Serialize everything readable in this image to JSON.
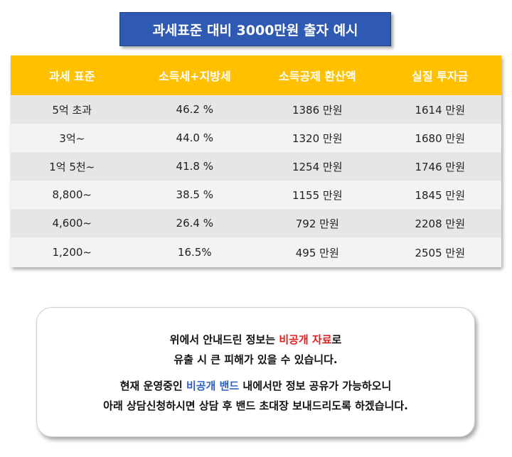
{
  "title": "과세표준 대비 3000만원 출자 예시",
  "table": {
    "headers": [
      "과세 표준",
      "소득세+지방세",
      "소득공제 환산액",
      "실질 투자금"
    ],
    "rows": [
      [
        "5억 초과",
        "46.2 %",
        "1386 만원",
        "1614 만원"
      ],
      [
        "3억~",
        "44.0 %",
        "1320 만원",
        "1680 만원"
      ],
      [
        "1억 5천~",
        "41.8 %",
        "1254 만원",
        "1746 만원"
      ],
      [
        "8,800~",
        "38.5 %",
        "1155 만원",
        "1845 만원"
      ],
      [
        "4,600~",
        "26.4 %",
        "792 만원",
        "2208 만원"
      ],
      [
        "1,200~",
        "16.5%",
        "495 만원",
        "2505 만원"
      ]
    ]
  },
  "notice": {
    "line1_before": "위에서 안내드린 정보는 ",
    "line1_highlight": "비공개 자료",
    "line1_after": "로",
    "line2": "유출 시 큰 피해가 있을 수 있습니다.",
    "line3_before": "현재 운영중인 ",
    "line3_highlight": "비공개 밴드",
    "line3_after": " 내에서만 정보 공유가 가능하오니",
    "line4": "아래 상담신청하시면 상담 후 밴드 초대장 보내드리도록 하겠습니다."
  },
  "colors": {
    "title_bg": "#2f5ab4",
    "header_bg": "#ffc000",
    "highlight_red": "#e02020",
    "highlight_blue": "#2d5fc4"
  }
}
